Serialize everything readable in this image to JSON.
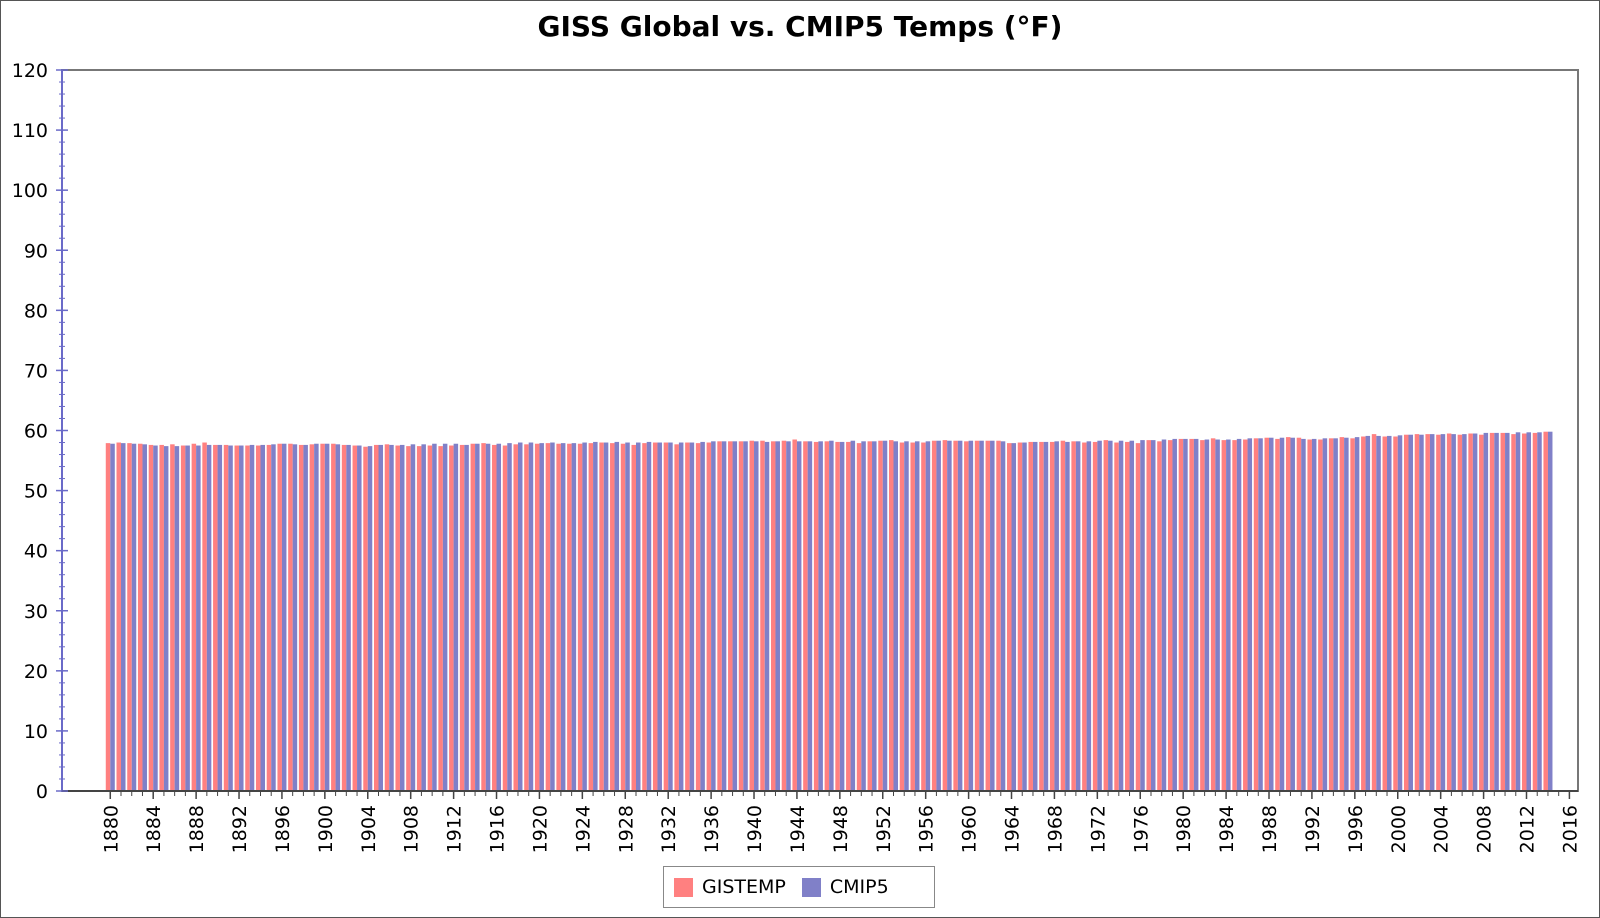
{
  "chart_data": {
    "type": "bar",
    "title": "GISS Global vs. CMIP5 Temps (°F)",
    "xlabel": "",
    "ylabel": "",
    "ylim": [
      0,
      120
    ],
    "yticks": [
      0,
      10,
      20,
      30,
      40,
      50,
      60,
      70,
      80,
      90,
      100,
      110,
      120
    ],
    "xtick_labels": [
      "1880",
      "1884",
      "1888",
      "1892",
      "1896",
      "1900",
      "1904",
      "1908",
      "1912",
      "1916",
      "1920",
      "1924",
      "1928",
      "1932",
      "1936",
      "1940",
      "1944",
      "1948",
      "1952",
      "1956",
      "1960",
      "1964",
      "1968",
      "1972",
      "1976",
      "1980",
      "1984",
      "1988",
      "1992",
      "1996",
      "2000",
      "2004",
      "2008",
      "2012",
      "2016"
    ],
    "legend_position": "bottom-center",
    "grid": false,
    "categories": [
      "1880",
      "1881",
      "1882",
      "1883",
      "1884",
      "1885",
      "1886",
      "1887",
      "1888",
      "1889",
      "1890",
      "1891",
      "1892",
      "1893",
      "1894",
      "1895",
      "1896",
      "1897",
      "1898",
      "1899",
      "1900",
      "1901",
      "1902",
      "1903",
      "1904",
      "1905",
      "1906",
      "1907",
      "1908",
      "1909",
      "1910",
      "1911",
      "1912",
      "1913",
      "1914",
      "1915",
      "1916",
      "1917",
      "1918",
      "1919",
      "1920",
      "1921",
      "1922",
      "1923",
      "1924",
      "1925",
      "1926",
      "1927",
      "1928",
      "1929",
      "1930",
      "1931",
      "1932",
      "1933",
      "1934",
      "1935",
      "1936",
      "1937",
      "1938",
      "1939",
      "1940",
      "1941",
      "1942",
      "1943",
      "1944",
      "1945",
      "1946",
      "1947",
      "1948",
      "1949",
      "1950",
      "1951",
      "1952",
      "1953",
      "1954",
      "1955",
      "1956",
      "1957",
      "1958",
      "1959",
      "1960",
      "1961",
      "1962",
      "1963",
      "1964",
      "1965",
      "1966",
      "1967",
      "1968",
      "1969",
      "1970",
      "1971",
      "1972",
      "1973",
      "1974",
      "1975",
      "1976",
      "1977",
      "1978",
      "1979",
      "1980",
      "1981",
      "1982",
      "1983",
      "1984",
      "1985",
      "1986",
      "1987",
      "1988",
      "1989",
      "1990",
      "1991",
      "1992",
      "1993",
      "1994",
      "1995",
      "1996",
      "1997",
      "1998",
      "1999",
      "2000",
      "2001",
      "2002",
      "2003",
      "2004",
      "2005",
      "2006",
      "2007",
      "2008",
      "2009",
      "2010",
      "2011",
      "2012",
      "2013",
      "2014"
    ],
    "series": [
      {
        "name": "GISTEMP",
        "color": "#ff8080",
        "values": [
          57.9,
          58.0,
          57.9,
          57.8,
          57.6,
          57.6,
          57.7,
          57.5,
          57.8,
          58.0,
          57.6,
          57.6,
          57.5,
          57.5,
          57.5,
          57.6,
          57.8,
          57.8,
          57.6,
          57.7,
          57.8,
          57.8,
          57.6,
          57.5,
          57.3,
          57.6,
          57.7,
          57.5,
          57.4,
          57.4,
          57.5,
          57.4,
          57.5,
          57.6,
          57.8,
          57.9,
          57.6,
          57.5,
          57.7,
          57.7,
          57.8,
          57.9,
          57.8,
          57.8,
          57.8,
          57.9,
          58.0,
          57.9,
          57.8,
          57.6,
          57.9,
          58.0,
          58.0,
          57.7,
          58.0,
          57.9,
          58.0,
          58.2,
          58.2,
          58.2,
          58.3,
          58.3,
          58.2,
          58.3,
          58.5,
          58.2,
          58.1,
          58.2,
          58.1,
          58.1,
          57.9,
          58.2,
          58.3,
          58.4,
          58.0,
          58.0,
          58.0,
          58.3,
          58.4,
          58.3,
          58.2,
          58.3,
          58.3,
          58.3,
          57.9,
          58.0,
          58.1,
          58.1,
          58.1,
          58.3,
          58.2,
          58.0,
          58.1,
          58.4,
          58.0,
          58.1,
          57.9,
          58.4,
          58.2,
          58.4,
          58.6,
          58.6,
          58.4,
          58.7,
          58.4,
          58.4,
          58.5,
          58.7,
          58.8,
          58.6,
          58.9,
          58.8,
          58.5,
          58.5,
          58.7,
          58.9,
          58.7,
          59.0,
          59.4,
          59.0,
          59.0,
          59.3,
          59.4,
          59.4,
          59.3,
          59.5,
          59.3,
          59.5,
          59.3,
          59.6,
          59.6,
          59.4,
          59.5,
          59.6,
          59.8
        ]
      },
      {
        "name": "CMIP5",
        "color": "#8080c8",
        "values": [
          57.8,
          57.9,
          57.8,
          57.7,
          57.5,
          57.4,
          57.4,
          57.5,
          57.5,
          57.6,
          57.6,
          57.5,
          57.5,
          57.6,
          57.6,
          57.7,
          57.8,
          57.7,
          57.6,
          57.8,
          57.8,
          57.7,
          57.6,
          57.5,
          57.4,
          57.6,
          57.6,
          57.6,
          57.7,
          57.7,
          57.8,
          57.8,
          57.8,
          57.6,
          57.8,
          57.8,
          57.8,
          57.9,
          58.0,
          58.0,
          57.9,
          58.0,
          57.9,
          57.9,
          58.0,
          58.1,
          58.0,
          58.1,
          58.0,
          58.0,
          58.1,
          58.0,
          58.0,
          58.0,
          58.0,
          58.1,
          58.2,
          58.2,
          58.2,
          58.2,
          58.2,
          58.1,
          58.2,
          58.2,
          58.2,
          58.2,
          58.2,
          58.3,
          58.1,
          58.3,
          58.2,
          58.2,
          58.3,
          58.2,
          58.2,
          58.2,
          58.2,
          58.3,
          58.3,
          58.3,
          58.3,
          58.3,
          58.3,
          58.2,
          57.9,
          58.0,
          58.1,
          58.1,
          58.2,
          58.1,
          58.2,
          58.2,
          58.3,
          58.3,
          58.3,
          58.3,
          58.4,
          58.4,
          58.5,
          58.6,
          58.6,
          58.6,
          58.5,
          58.5,
          58.5,
          58.6,
          58.7,
          58.7,
          58.8,
          58.8,
          58.8,
          58.6,
          58.6,
          58.7,
          58.7,
          58.8,
          58.9,
          59.1,
          59.1,
          59.1,
          59.2,
          59.3,
          59.3,
          59.4,
          59.4,
          59.4,
          59.4,
          59.5,
          59.6,
          59.6,
          59.6,
          59.7,
          59.7,
          59.7,
          59.8
        ]
      }
    ]
  }
}
